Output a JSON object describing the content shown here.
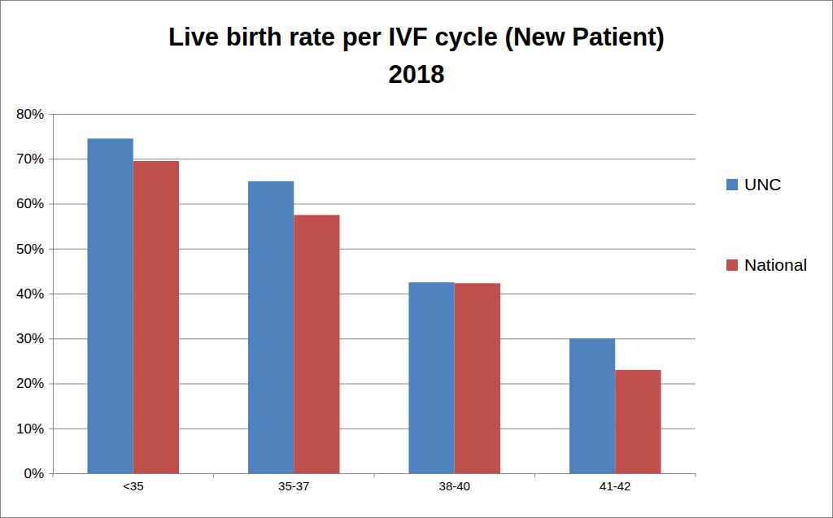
{
  "chart_data": {
    "type": "bar",
    "title": [
      "Live birth rate per IVF cycle (New Patient)",
      "2018"
    ],
    "categories": [
      "<35",
      "35-37",
      "38-40",
      "41-42"
    ],
    "series": [
      {
        "name": "UNC",
        "color": "#4f81bd",
        "values": [
          74.5,
          65,
          42.5,
          30
        ]
      },
      {
        "name": "National",
        "color": "#c0504d",
        "values": [
          69.5,
          57.5,
          42.3,
          23
        ]
      }
    ],
    "ylim": [
      0,
      80
    ],
    "yticks": [
      {
        "value": 0,
        "label": "0%"
      },
      {
        "value": 10,
        "label": "10%"
      },
      {
        "value": 20,
        "label": "20%"
      },
      {
        "value": 30,
        "label": "30%"
      },
      {
        "value": 40,
        "label": "40%"
      },
      {
        "value": 50,
        "label": "50%"
      },
      {
        "value": 60,
        "label": "60%"
      },
      {
        "value": 70,
        "label": "70%"
      },
      {
        "value": 80,
        "label": "80%"
      }
    ],
    "grid": true,
    "legend": "right"
  }
}
